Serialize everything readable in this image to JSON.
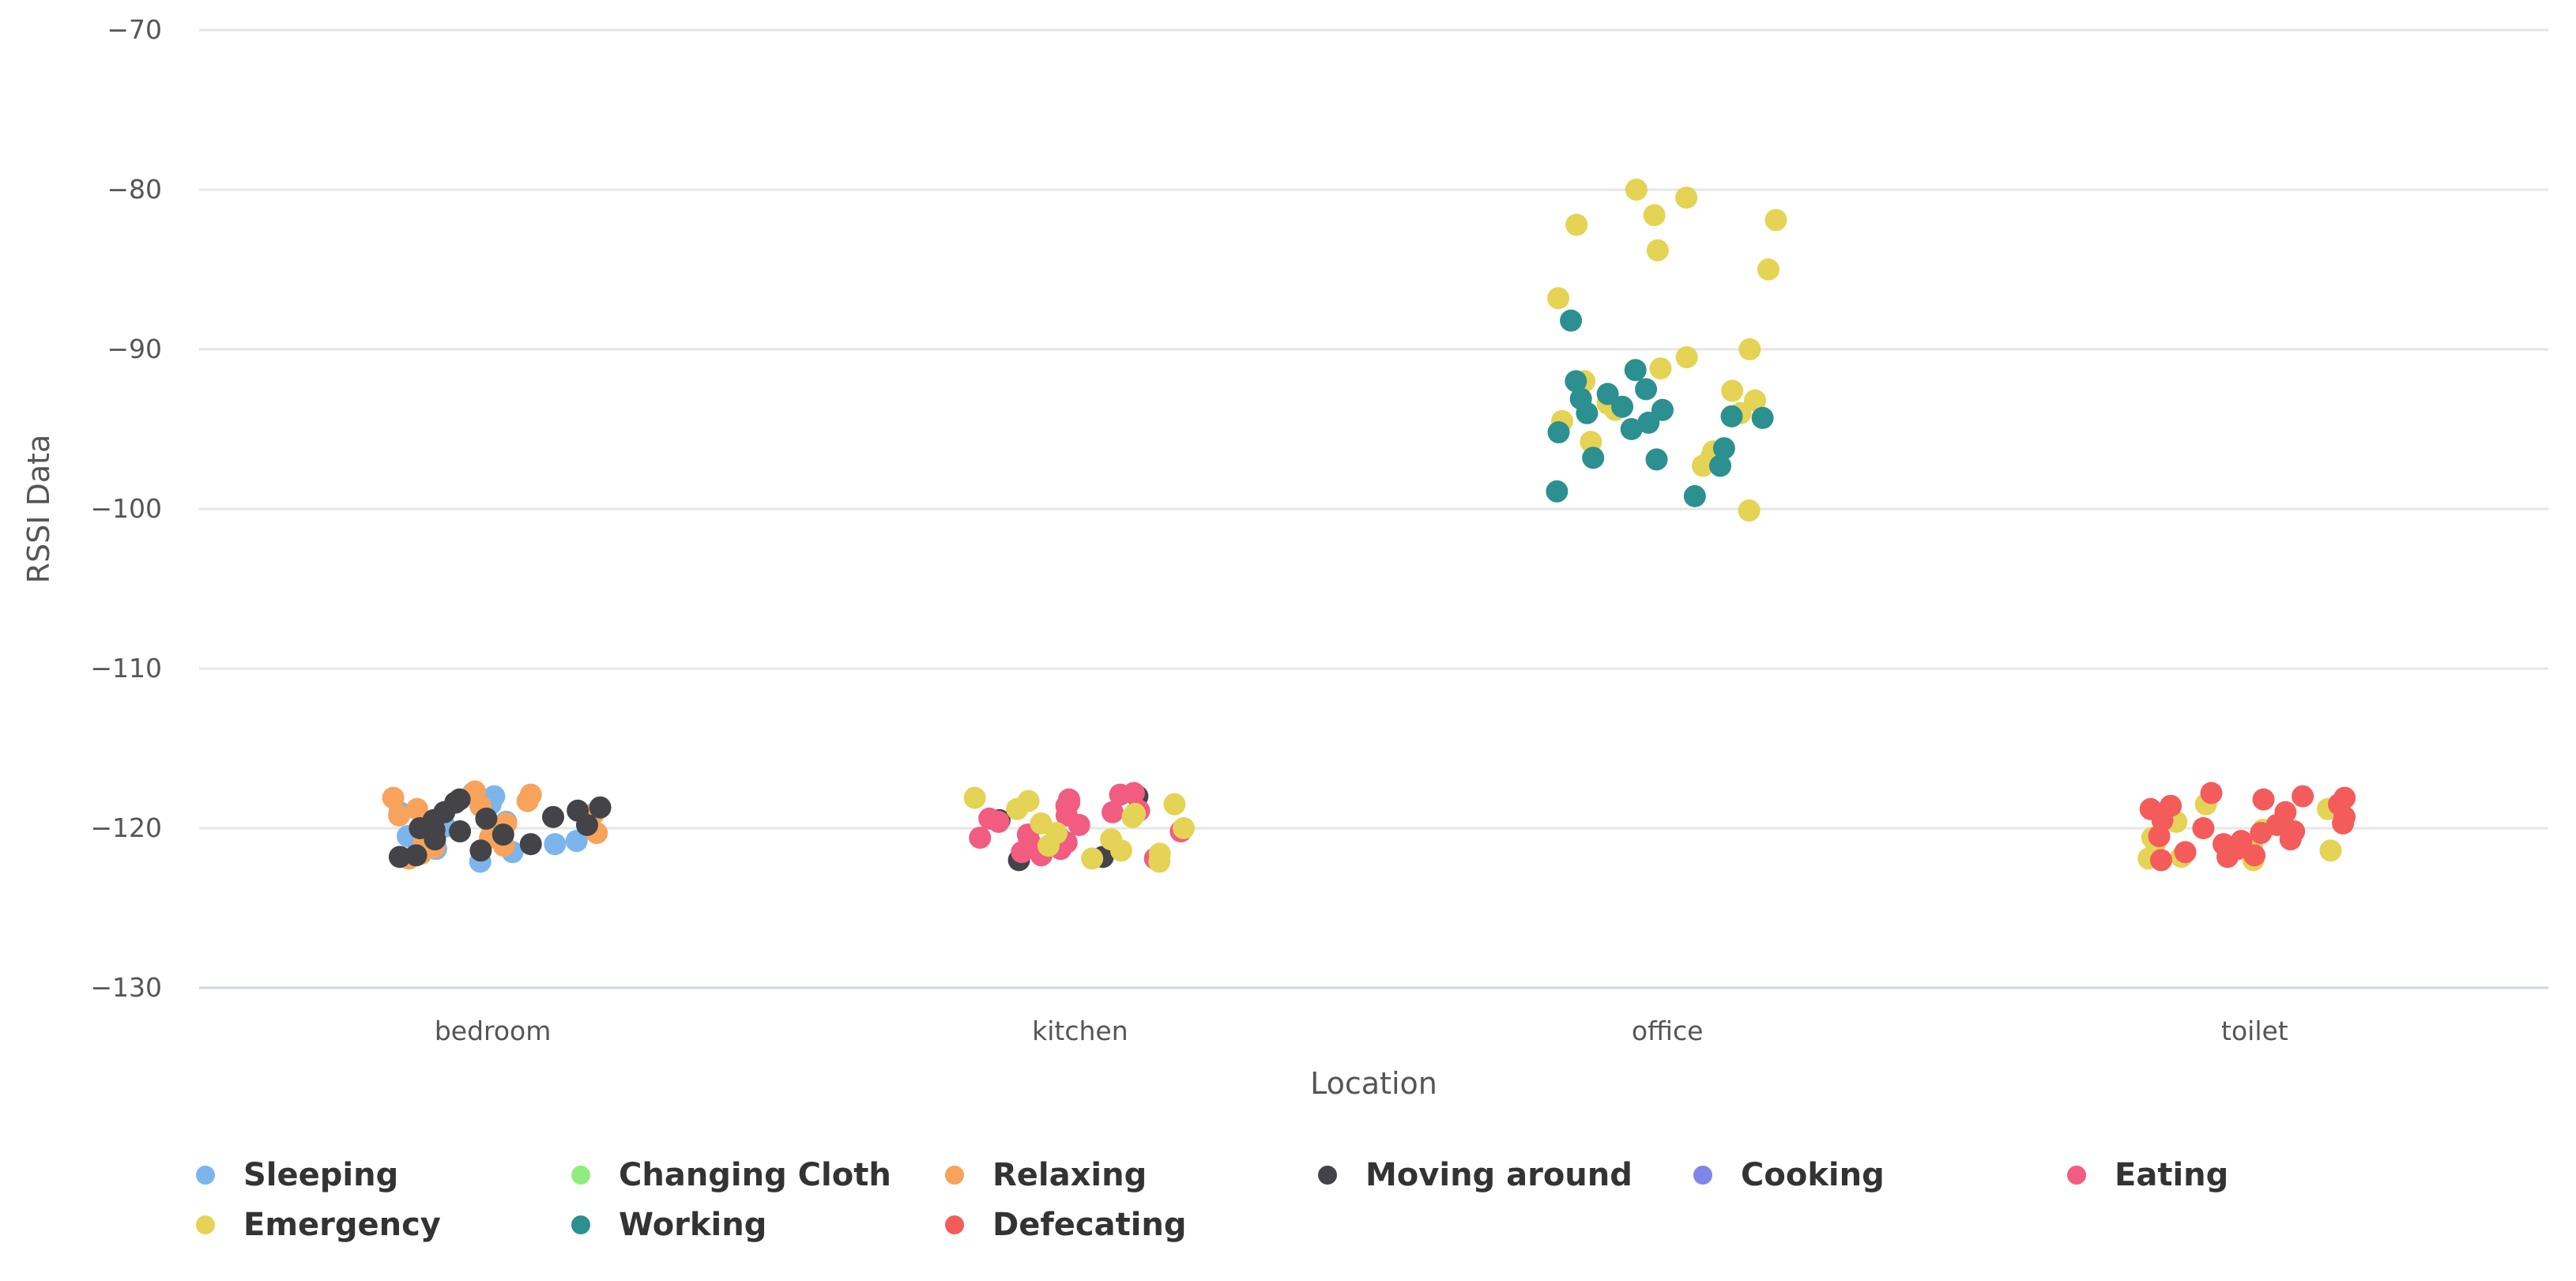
{
  "chart_data": {
    "type": "scatter",
    "title": "",
    "xlabel": "Location",
    "ylabel": "RSSI Data",
    "categories": [
      "bedroom",
      "kitchen",
      "office",
      "toilet"
    ],
    "ylim": [
      -130,
      -70
    ],
    "yticks": [
      -70,
      -80,
      -90,
      -100,
      -110,
      -120,
      -130
    ],
    "grid": true,
    "legend_position": "bottom",
    "series": [
      {
        "name": "Sleeping",
        "color": "#7cb5ec",
        "points": [
          {
            "x": "bedroom",
            "y": -118.5
          },
          {
            "x": "bedroom",
            "y": -119.6
          },
          {
            "x": "bedroom",
            "y": -120.5
          },
          {
            "x": "bedroom",
            "y": -121.3
          },
          {
            "x": "bedroom",
            "y": -122.1
          },
          {
            "x": "bedroom",
            "y": -118.0
          },
          {
            "x": "bedroom",
            "y": -119.0
          },
          {
            "x": "bedroom",
            "y": -120.8
          },
          {
            "x": "bedroom",
            "y": -121.5
          },
          {
            "x": "bedroom",
            "y": -117.8
          },
          {
            "x": "bedroom",
            "y": -119.9
          },
          {
            "x": "bedroom",
            "y": -121.0
          }
        ]
      },
      {
        "name": "Changing Cloth",
        "color": "#90ed7d",
        "points": []
      },
      {
        "name": "Relaxing",
        "color": "#f7a35c",
        "points": [
          {
            "x": "bedroom",
            "y": -118.3
          },
          {
            "x": "bedroom",
            "y": -119.2
          },
          {
            "x": "bedroom",
            "y": -120.1
          },
          {
            "x": "bedroom",
            "y": -121.2
          },
          {
            "x": "bedroom",
            "y": -117.9
          },
          {
            "x": "bedroom",
            "y": -118.8
          },
          {
            "x": "bedroom",
            "y": -119.7
          },
          {
            "x": "bedroom",
            "y": -120.6
          },
          {
            "x": "bedroom",
            "y": -121.6
          },
          {
            "x": "bedroom",
            "y": -118.1
          },
          {
            "x": "bedroom",
            "y": -119.4
          },
          {
            "x": "bedroom",
            "y": -120.3
          },
          {
            "x": "bedroom",
            "y": -121.9
          },
          {
            "x": "bedroom",
            "y": -118.6
          },
          {
            "x": "bedroom",
            "y": -119.1
          },
          {
            "x": "bedroom",
            "y": -120.9
          },
          {
            "x": "bedroom",
            "y": -117.7
          },
          {
            "x": "bedroom",
            "y": -121.1
          }
        ]
      },
      {
        "name": "Moving around",
        "color": "#434348",
        "points": [
          {
            "x": "bedroom",
            "y": -121.0
          },
          {
            "x": "bedroom",
            "y": -119.0
          },
          {
            "x": "bedroom",
            "y": -120.0
          },
          {
            "x": "bedroom",
            "y": -118.7
          },
          {
            "x": "bedroom",
            "y": -121.4
          },
          {
            "x": "bedroom",
            "y": -119.5
          },
          {
            "x": "bedroom",
            "y": -120.4
          },
          {
            "x": "bedroom",
            "y": -118.4
          },
          {
            "x": "bedroom",
            "y": -121.7
          },
          {
            "x": "bedroom",
            "y": -119.3
          },
          {
            "x": "bedroom",
            "y": -120.2
          },
          {
            "x": "bedroom",
            "y": -118.2
          },
          {
            "x": "bedroom",
            "y": -121.8
          },
          {
            "x": "bedroom",
            "y": -119.8
          },
          {
            "x": "bedroom",
            "y": -120.7
          },
          {
            "x": "bedroom",
            "y": -118.9
          },
          {
            "x": "bedroom",
            "y": -119.4
          },
          {
            "x": "bedroom",
            "y": -120.1
          },
          {
            "x": "kitchen",
            "y": -121.8
          },
          {
            "x": "kitchen",
            "y": -120.5
          },
          {
            "x": "kitchen",
            "y": -118.0
          },
          {
            "x": "kitchen",
            "y": -121.2
          },
          {
            "x": "kitchen",
            "y": -119.5
          },
          {
            "x": "kitchen",
            "y": -122.0
          }
        ]
      },
      {
        "name": "Cooking",
        "color": "#8085e9",
        "points": []
      },
      {
        "name": "Eating",
        "color": "#f15c80",
        "points": [
          {
            "x": "kitchen",
            "y": -118.2
          },
          {
            "x": "kitchen",
            "y": -119.4
          },
          {
            "x": "kitchen",
            "y": -120.6
          },
          {
            "x": "kitchen",
            "y": -121.3
          },
          {
            "x": "kitchen",
            "y": -117.9
          },
          {
            "x": "kitchen",
            "y": -119.0
          },
          {
            "x": "kitchen",
            "y": -120.2
          },
          {
            "x": "kitchen",
            "y": -121.7
          },
          {
            "x": "kitchen",
            "y": -118.6
          },
          {
            "x": "kitchen",
            "y": -119.8
          },
          {
            "x": "kitchen",
            "y": -120.9
          },
          {
            "x": "kitchen",
            "y": -121.9
          },
          {
            "x": "kitchen",
            "y": -118.4
          },
          {
            "x": "kitchen",
            "y": -119.2
          },
          {
            "x": "kitchen",
            "y": -120.4
          },
          {
            "x": "kitchen",
            "y": -121.5
          },
          {
            "x": "kitchen",
            "y": -117.8
          },
          {
            "x": "kitchen",
            "y": -119.6
          },
          {
            "x": "kitchen",
            "y": -120.8
          },
          {
            "x": "kitchen",
            "y": -118.9
          }
        ]
      },
      {
        "name": "Emergency",
        "color": "#e4d354",
        "points": [
          {
            "x": "kitchen",
            "y": -122.1
          },
          {
            "x": "kitchen",
            "y": -120.0
          },
          {
            "x": "kitchen",
            "y": -118.5
          },
          {
            "x": "kitchen",
            "y": -121.6
          },
          {
            "x": "kitchen",
            "y": -119.1
          },
          {
            "x": "kitchen",
            "y": -120.7
          },
          {
            "x": "kitchen",
            "y": -121.9
          },
          {
            "x": "kitchen",
            "y": -118.1
          },
          {
            "x": "kitchen",
            "y": -119.7
          },
          {
            "x": "kitchen",
            "y": -121.1
          },
          {
            "x": "kitchen",
            "y": -118.8
          },
          {
            "x": "kitchen",
            "y": -120.3
          },
          {
            "x": "kitchen",
            "y": -121.4
          },
          {
            "x": "kitchen",
            "y": -119.3
          },
          {
            "x": "kitchen",
            "y": -118.3
          },
          {
            "x": "office",
            "y": -85.0
          },
          {
            "x": "office",
            "y": -86.8
          },
          {
            "x": "office",
            "y": -80.0
          },
          {
            "x": "office",
            "y": -80.5
          },
          {
            "x": "office",
            "y": -81.6
          },
          {
            "x": "office",
            "y": -82.2
          },
          {
            "x": "office",
            "y": -81.9
          },
          {
            "x": "office",
            "y": -83.8
          },
          {
            "x": "office",
            "y": -90.0
          },
          {
            "x": "office",
            "y": -90.5
          },
          {
            "x": "office",
            "y": -91.2
          },
          {
            "x": "office",
            "y": -92.0
          },
          {
            "x": "office",
            "y": -92.6
          },
          {
            "x": "office",
            "y": -93.2
          },
          {
            "x": "office",
            "y": -93.8
          },
          {
            "x": "office",
            "y": -94.5
          },
          {
            "x": "office",
            "y": -95.8
          },
          {
            "x": "office",
            "y": -96.4
          },
          {
            "x": "office",
            "y": -96.8
          },
          {
            "x": "office",
            "y": -97.3
          },
          {
            "x": "office",
            "y": -100.1
          },
          {
            "x": "office",
            "y": -93.4
          },
          {
            "x": "office",
            "y": -94.0
          },
          {
            "x": "toilet",
            "y": -121.8
          },
          {
            "x": "toilet",
            "y": -120.6
          },
          {
            "x": "toilet",
            "y": -119.2
          },
          {
            "x": "toilet",
            "y": -121.9
          },
          {
            "x": "toilet",
            "y": -120.1
          },
          {
            "x": "toilet",
            "y": -118.8
          },
          {
            "x": "toilet",
            "y": -121.4
          },
          {
            "x": "toilet",
            "y": -119.6
          },
          {
            "x": "toilet",
            "y": -122.0
          },
          {
            "x": "toilet",
            "y": -120.9
          },
          {
            "x": "toilet",
            "y": -118.5
          },
          {
            "x": "toilet",
            "y": -121.1
          }
        ]
      },
      {
        "name": "Working",
        "color": "#2b908f",
        "points": [
          {
            "x": "office",
            "y": -88.2
          },
          {
            "x": "office",
            "y": -91.3
          },
          {
            "x": "office",
            "y": -92.8
          },
          {
            "x": "office",
            "y": -93.6
          },
          {
            "x": "office",
            "y": -94.2
          },
          {
            "x": "office",
            "y": -94.0
          },
          {
            "x": "office",
            "y": -96.8
          },
          {
            "x": "office",
            "y": -98.9
          },
          {
            "x": "office",
            "y": -99.2
          },
          {
            "x": "office",
            "y": -92.0
          },
          {
            "x": "office",
            "y": -92.5
          },
          {
            "x": "office",
            "y": -93.1
          },
          {
            "x": "office",
            "y": -93.8
          },
          {
            "x": "office",
            "y": -94.6
          },
          {
            "x": "office",
            "y": -95.2
          },
          {
            "x": "office",
            "y": -96.2
          },
          {
            "x": "office",
            "y": -96.9
          },
          {
            "x": "office",
            "y": -97.3
          },
          {
            "x": "office",
            "y": -95.0
          },
          {
            "x": "office",
            "y": -94.3
          }
        ]
      },
      {
        "name": "Defecating",
        "color": "#f45b5b",
        "points": [
          {
            "x": "toilet",
            "y": -118.0
          },
          {
            "x": "toilet",
            "y": -119.0
          },
          {
            "x": "toilet",
            "y": -120.0
          },
          {
            "x": "toilet",
            "y": -121.0
          },
          {
            "x": "toilet",
            "y": -122.0
          },
          {
            "x": "toilet",
            "y": -118.5
          },
          {
            "x": "toilet",
            "y": -119.5
          },
          {
            "x": "toilet",
            "y": -120.5
          },
          {
            "x": "toilet",
            "y": -121.5
          },
          {
            "x": "toilet",
            "y": -117.8
          },
          {
            "x": "toilet",
            "y": -118.8
          },
          {
            "x": "toilet",
            "y": -119.8
          },
          {
            "x": "toilet",
            "y": -120.8
          },
          {
            "x": "toilet",
            "y": -121.8
          },
          {
            "x": "toilet",
            "y": -118.2
          },
          {
            "x": "toilet",
            "y": -119.3
          },
          {
            "x": "toilet",
            "y": -120.3
          },
          {
            "x": "toilet",
            "y": -121.3
          },
          {
            "x": "toilet",
            "y": -118.6
          },
          {
            "x": "toilet",
            "y": -119.7
          },
          {
            "x": "toilet",
            "y": -120.7
          },
          {
            "x": "toilet",
            "y": -121.7
          },
          {
            "x": "toilet",
            "y": -118.1
          },
          {
            "x": "toilet",
            "y": -120.2
          }
        ]
      }
    ]
  }
}
